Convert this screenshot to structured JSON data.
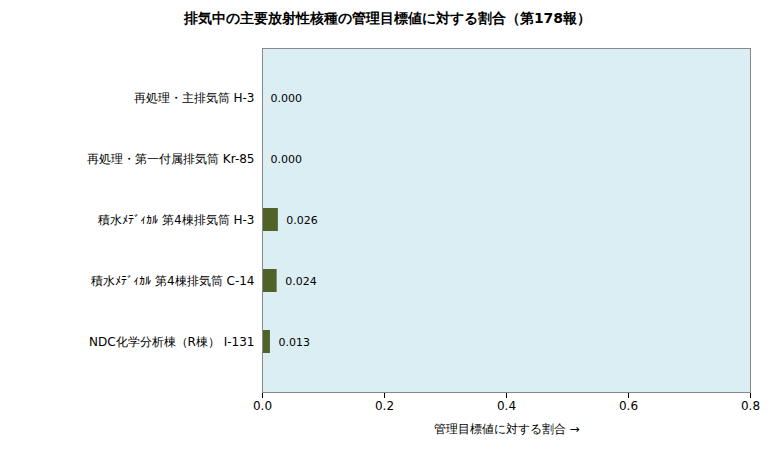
{
  "chart_data": {
    "type": "bar",
    "orientation": "horizontal",
    "title": "排気中の主要放射性核種の管理目標値に対する割合（第178報）",
    "xlabel": "管理目標値に対する割合",
    "categories": [
      "再処理・主排気筒 H-3",
      "再処理・第一付属排気筒 Kr-85",
      "積水ﾒﾃﾞｨｶﾙ 第4棟排気筒 H-3",
      "積水ﾒﾃﾞｨｶﾙ 第4棟排気筒 C-14",
      "NDC化学分析棟（R棟） I-131"
    ],
    "values": [
      0.0,
      0.0,
      0.026,
      0.024,
      0.013
    ],
    "value_labels": [
      "0.000",
      "0.000",
      "0.026",
      "0.024",
      "0.013"
    ],
    "data_labels": true,
    "color": "#4f6228",
    "xlim": [
      0,
      0.8
    ],
    "xticks": [
      {
        "value": 0,
        "label": "0.0"
      },
      0.2,
      0.4,
      0.6,
      0.8
    ],
    "grid": false
  }
}
